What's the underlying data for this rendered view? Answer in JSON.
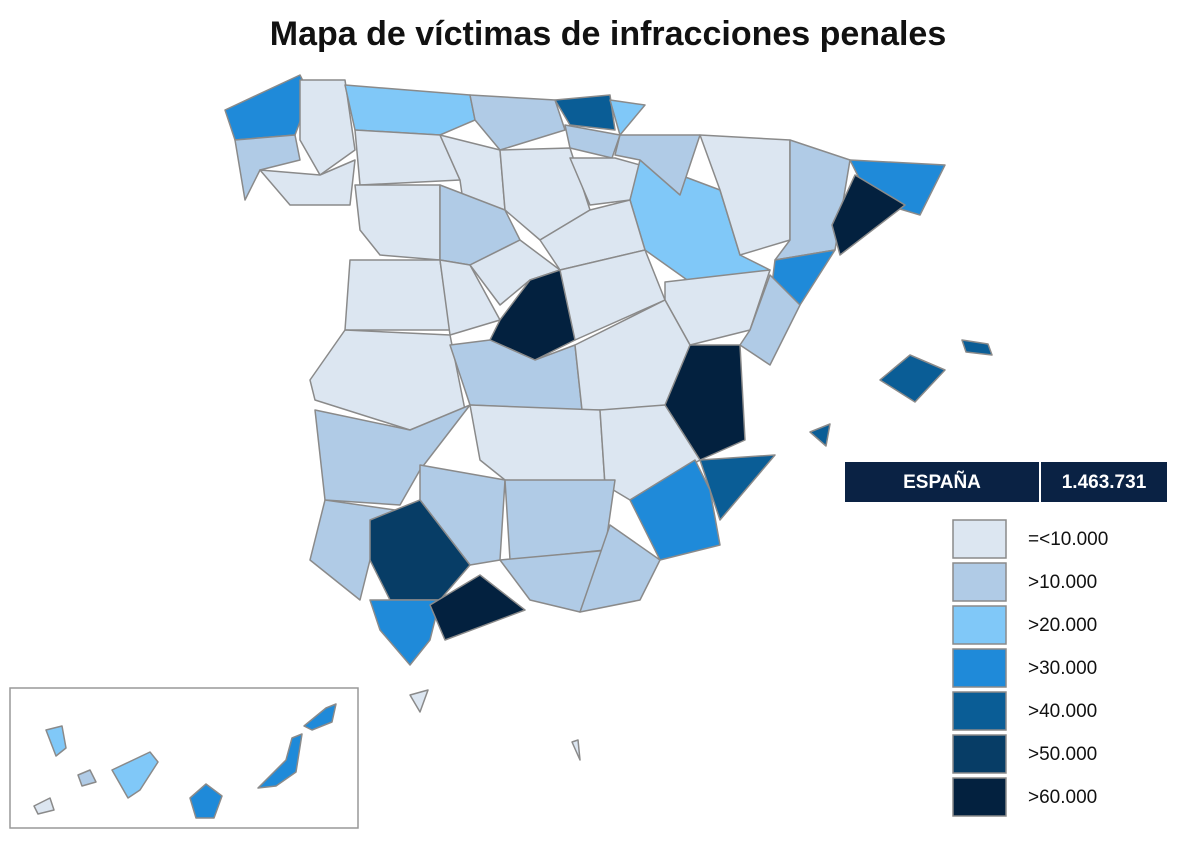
{
  "title": "Mapa de víctimas de infracciones penales",
  "total": {
    "label": "ESPAÑA",
    "value": "1.463.731"
  },
  "legend": [
    {
      "label": "=<10.000",
      "color": "#dce6f1"
    },
    {
      "label": ">10.000",
      "color": "#b0cbe6"
    },
    {
      "label": ">20.000",
      "color": "#80c8f8"
    },
    {
      "label": ">30.000",
      "color": "#1f8ad9"
    },
    {
      "label": ">40.000",
      "color": "#0a5d96"
    },
    {
      "label": ">50.000",
      "color": "#073d66"
    },
    {
      "label": ">60.000",
      "color": "#03213f"
    }
  ]
}
